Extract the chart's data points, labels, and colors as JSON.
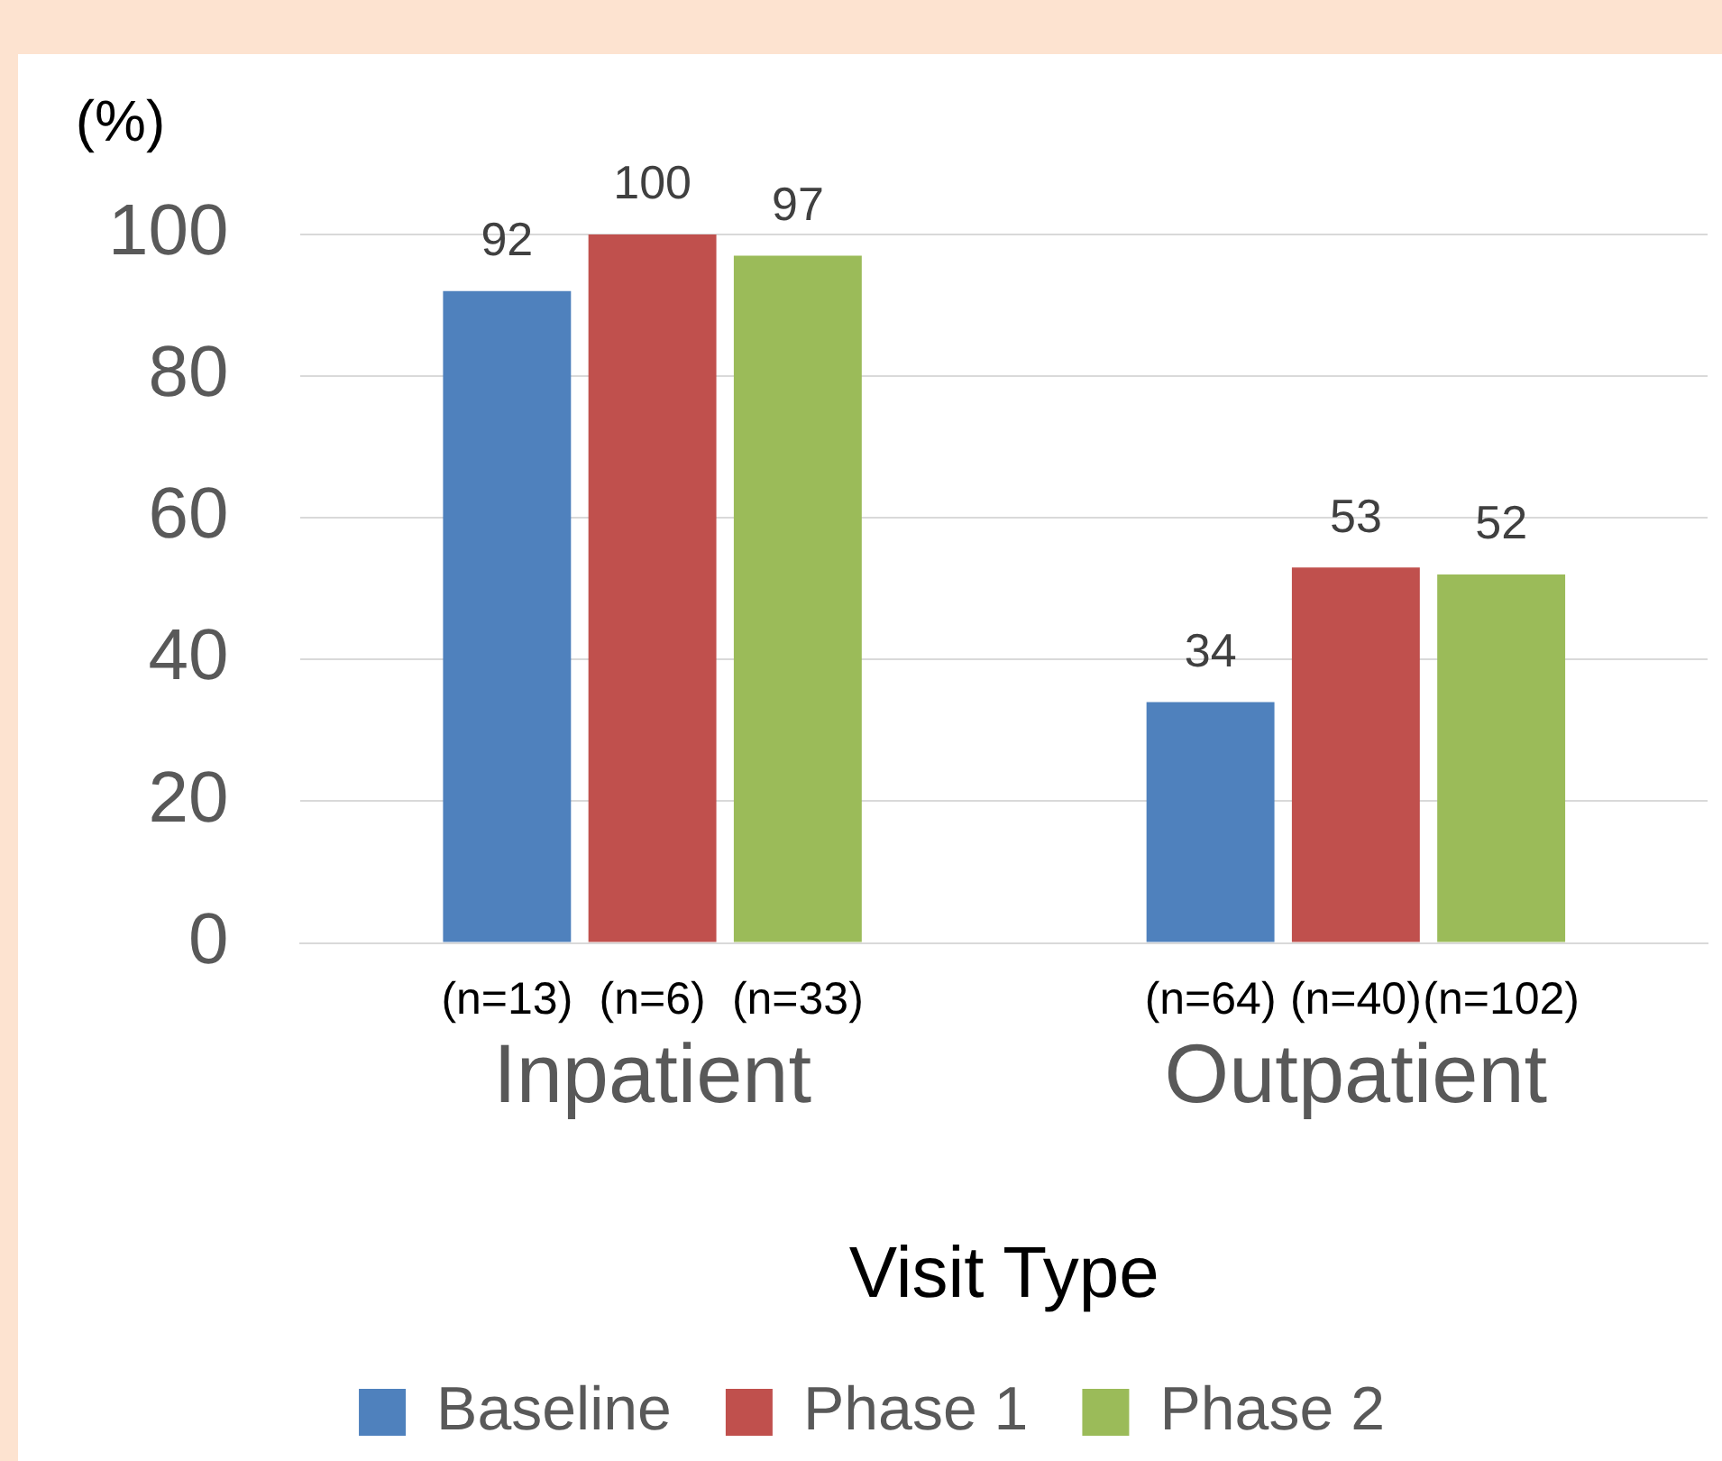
{
  "chart_data": {
    "type": "bar",
    "ylabel": "(%)",
    "xlabel": "Visit Type",
    "categories": [
      "Inpatient",
      "Outpatient"
    ],
    "series": [
      {
        "name": "Baseline",
        "color": "#4f81bd",
        "values": [
          92,
          34
        ]
      },
      {
        "name": "Phase 1",
        "color": "#c0504d",
        "values": [
          100,
          53
        ]
      },
      {
        "name": "Phase 2",
        "color": "#9bbb59",
        "values": [
          97,
          52
        ]
      }
    ],
    "annotations": [
      "(n=13)",
      "(n=6)",
      "(n=33)",
      "(n=64)",
      "(n=40)",
      "(n=102)"
    ],
    "ylim": [
      0,
      100
    ],
    "yticks": [
      0,
      20,
      40,
      60,
      80,
      100
    ],
    "data_labels": true,
    "grid": "y",
    "legend": "bottom"
  }
}
